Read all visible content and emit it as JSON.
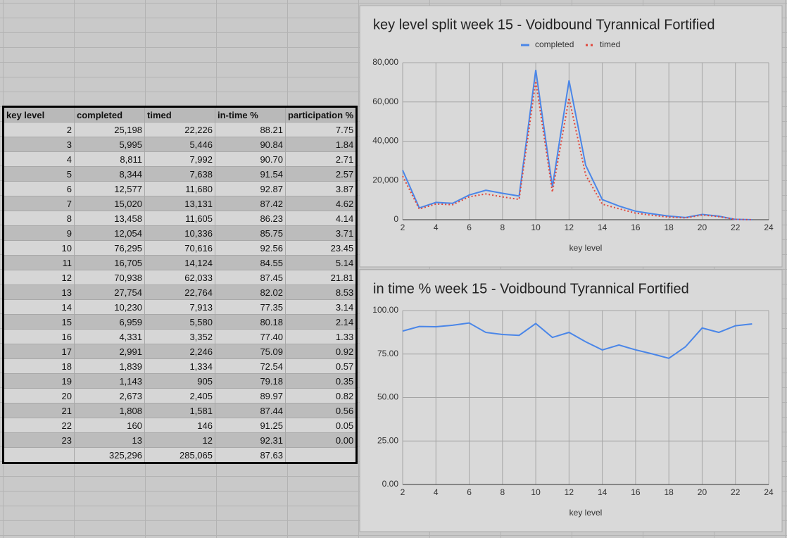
{
  "table": {
    "header": [
      "key level",
      "completed",
      "timed",
      "in-time %",
      "participation %"
    ],
    "rows": [
      [
        "2",
        "25,198",
        "22,226",
        "88.21",
        "7.75"
      ],
      [
        "3",
        "5,995",
        "5,446",
        "90.84",
        "1.84"
      ],
      [
        "4",
        "8,811",
        "7,992",
        "90.70",
        "2.71"
      ],
      [
        "5",
        "8,344",
        "7,638",
        "91.54",
        "2.57"
      ],
      [
        "6",
        "12,577",
        "11,680",
        "92.87",
        "3.87"
      ],
      [
        "7",
        "15,020",
        "13,131",
        "87.42",
        "4.62"
      ],
      [
        "8",
        "13,458",
        "11,605",
        "86.23",
        "4.14"
      ],
      [
        "9",
        "12,054",
        "10,336",
        "85.75",
        "3.71"
      ],
      [
        "10",
        "76,295",
        "70,616",
        "92.56",
        "23.45"
      ],
      [
        "11",
        "16,705",
        "14,124",
        "84.55",
        "5.14"
      ],
      [
        "12",
        "70,938",
        "62,033",
        "87.45",
        "21.81"
      ],
      [
        "13",
        "27,754",
        "22,764",
        "82.02",
        "8.53"
      ],
      [
        "14",
        "10,230",
        "7,913",
        "77.35",
        "3.14"
      ],
      [
        "15",
        "6,959",
        "5,580",
        "80.18",
        "2.14"
      ],
      [
        "16",
        "4,331",
        "3,352",
        "77.40",
        "1.33"
      ],
      [
        "17",
        "2,991",
        "2,246",
        "75.09",
        "0.92"
      ],
      [
        "18",
        "1,839",
        "1,334",
        "72.54",
        "0.57"
      ],
      [
        "19",
        "1,143",
        "905",
        "79.18",
        "0.35"
      ],
      [
        "20",
        "2,673",
        "2,405",
        "89.97",
        "0.82"
      ],
      [
        "21",
        "1,808",
        "1,581",
        "87.44",
        "0.56"
      ],
      [
        "22",
        "160",
        "146",
        "91.25",
        "0.05"
      ],
      [
        "23",
        "13",
        "12",
        "92.31",
        "0.00"
      ]
    ],
    "total_row": [
      "325,296",
      "285,065",
      "87.63"
    ]
  },
  "chart_data": [
    {
      "type": "line",
      "title": "key level split week 15 - Voidbound Tyrannical Fortified",
      "x_label": "key level",
      "x": [
        2,
        3,
        4,
        5,
        6,
        7,
        8,
        9,
        10,
        11,
        12,
        13,
        14,
        15,
        16,
        17,
        18,
        19,
        20,
        21,
        22,
        23
      ],
      "series": [
        {
          "name": "completed",
          "color": "#4a86e8",
          "style": "solid",
          "values": [
            25198,
            5995,
            8811,
            8344,
            12577,
            15020,
            13458,
            12054,
            76295,
            16705,
            70938,
            27754,
            10230,
            6959,
            4331,
            2991,
            1839,
            1143,
            2673,
            1808,
            160,
            13
          ]
        },
        {
          "name": "timed",
          "color": "#e0473c",
          "style": "dotted",
          "values": [
            22226,
            5446,
            7992,
            7638,
            11680,
            13131,
            11605,
            10336,
            70616,
            14124,
            62033,
            22764,
            7913,
            5580,
            3352,
            2246,
            1334,
            905,
            2405,
            1581,
            146,
            12
          ]
        }
      ],
      "xlim": [
        2,
        24
      ],
      "xticks": [
        2,
        4,
        6,
        8,
        10,
        12,
        14,
        16,
        18,
        20,
        22,
        24
      ],
      "ylim": [
        0,
        80000
      ],
      "yticks": [
        0,
        {
          "value": 20000,
          "label": "20,000"
        },
        {
          "value": 40000,
          "label": "40,000"
        },
        {
          "value": 60000,
          "label": "60,000"
        },
        {
          "value": 80000,
          "label": "80,000"
        }
      ],
      "grid": true,
      "legend": "top"
    },
    {
      "type": "line",
      "title": "in time % week 15 - Voidbound Tyrannical Fortified",
      "x_label": "key level",
      "x": [
        2,
        3,
        4,
        5,
        6,
        7,
        8,
        9,
        10,
        11,
        12,
        13,
        14,
        15,
        16,
        17,
        18,
        19,
        20,
        21,
        22,
        23
      ],
      "values": [
        88.21,
        90.84,
        90.7,
        91.54,
        92.87,
        87.42,
        86.23,
        85.75,
        92.56,
        84.55,
        87.45,
        82.02,
        77.35,
        80.18,
        77.4,
        75.09,
        72.54,
        79.18,
        89.97,
        87.44,
        91.25,
        92.31
      ],
      "color": "#4a86e8",
      "xlim": [
        2,
        24
      ],
      "xticks": [
        2,
        4,
        6,
        8,
        10,
        12,
        14,
        16,
        18,
        20,
        22,
        24
      ],
      "ylim": [
        0,
        100
      ],
      "yticks": [
        {
          "value": 0,
          "label": "0.00"
        },
        {
          "value": 25,
          "label": "25.00"
        },
        {
          "value": 50,
          "label": "50.00"
        },
        {
          "value": 75,
          "label": "75.00"
        },
        {
          "value": 100,
          "label": "100.00"
        }
      ],
      "grid": true
    }
  ]
}
